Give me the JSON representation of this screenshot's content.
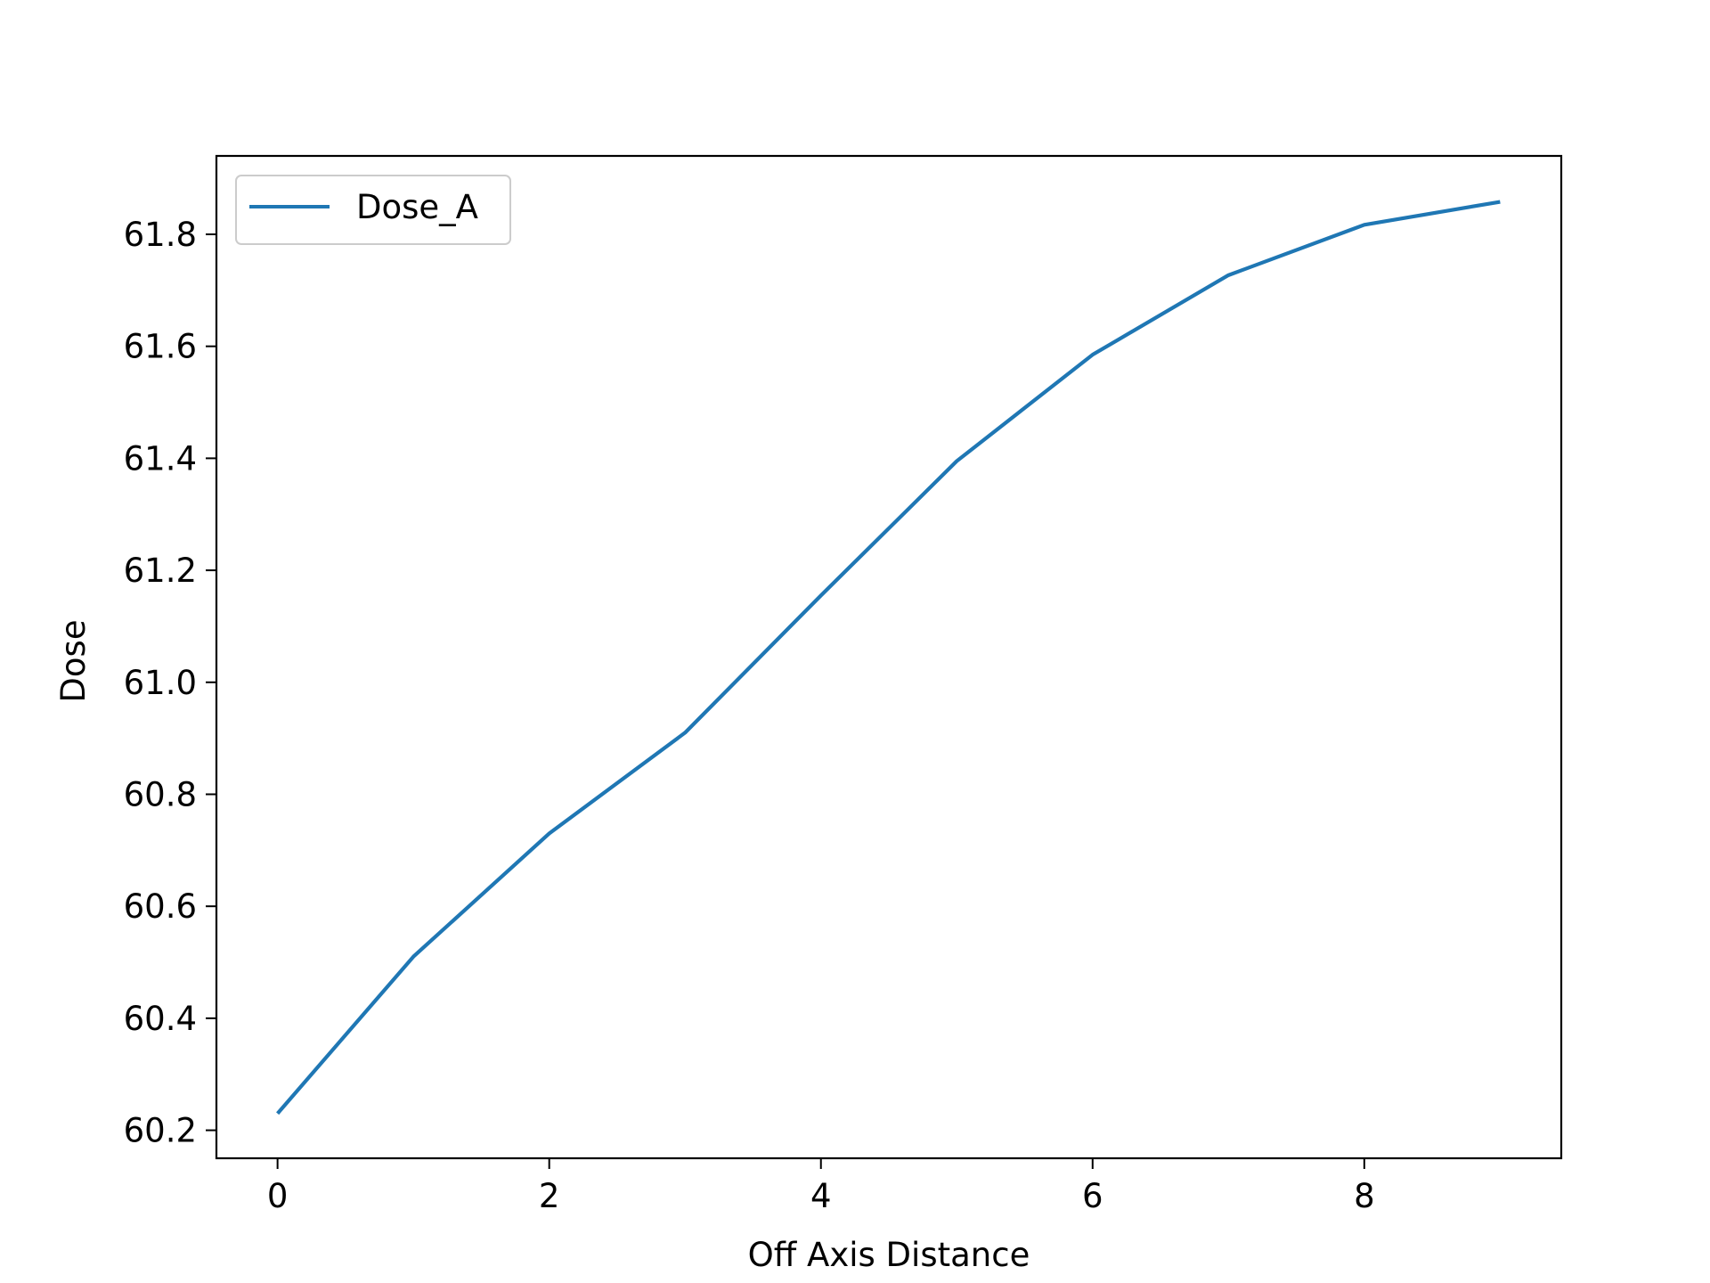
{
  "chart_data": {
    "type": "line",
    "title": "",
    "xlabel": "Off Axis Distance",
    "ylabel": "Dose",
    "x": [
      0,
      1,
      2,
      3,
      4,
      5,
      6,
      7,
      8,
      9
    ],
    "series": [
      {
        "name": "Dose_A",
        "color": "#1f77b4",
        "values": [
          60.23,
          60.51,
          60.73,
          60.91,
          61.155,
          61.395,
          61.585,
          61.727,
          61.817,
          61.858
        ]
      }
    ],
    "xlim": [
      -0.45,
      9.45
    ],
    "ylim": [
      60.15,
      61.94
    ],
    "xticks": [
      0,
      2,
      4,
      6,
      8
    ],
    "xtick_labels": [
      "0",
      "2",
      "4",
      "6",
      "8"
    ],
    "yticks": [
      60.2,
      60.4,
      60.6,
      60.8,
      61.0,
      61.2,
      61.4,
      61.6,
      61.8
    ],
    "ytick_labels": [
      "60.2",
      "60.4",
      "60.6",
      "60.8",
      "61.0",
      "61.2",
      "61.4",
      "61.6",
      "61.8"
    ],
    "grid": false,
    "legend_position": "upper-left"
  }
}
